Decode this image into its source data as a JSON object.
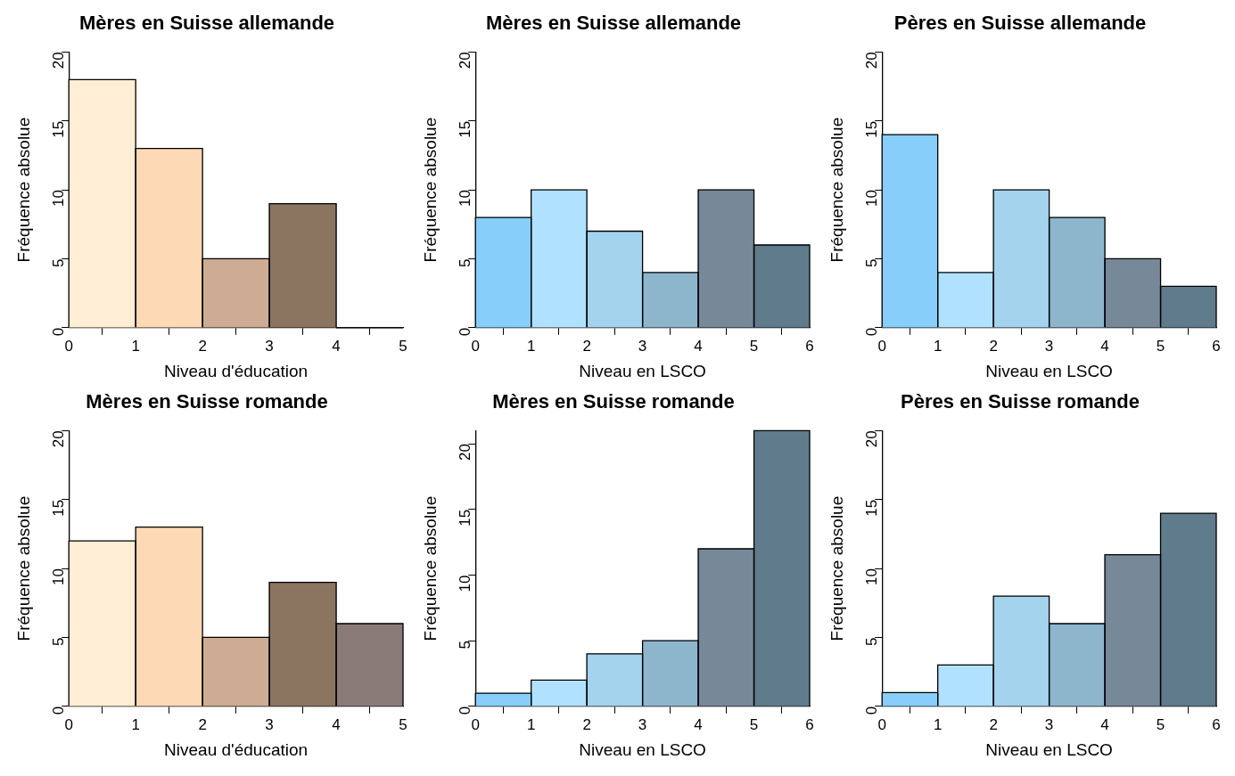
{
  "chart_data": [
    {
      "type": "histogram",
      "title": "Mères en Suisse allemande",
      "xlabel": "Niveau d'éducation",
      "ylabel": "Fréquence absolue",
      "bins": [
        0,
        1,
        2,
        3,
        4,
        5
      ],
      "values": [
        18,
        13,
        5,
        9,
        0
      ],
      "colors": [
        "#ffeed5",
        "#fdd9b5",
        "#cdac93",
        "#8b7560",
        "#8b7b78"
      ],
      "xlim": [
        0,
        5
      ],
      "xticks": [
        0,
        1,
        2,
        3,
        4,
        5
      ],
      "ylim": [
        0,
        20
      ],
      "yticks": [
        0,
        5,
        10,
        15,
        20
      ],
      "grid": false
    },
    {
      "type": "histogram",
      "title": "Mères en Suisse allemande",
      "xlabel": "Niveau en LSCO",
      "ylabel": "Fréquence absolue",
      "bins": [
        0,
        1,
        2,
        3,
        4,
        5,
        6
      ],
      "values": [
        8,
        10,
        7,
        4,
        10,
        6
      ],
      "colors": [
        "#87cefa",
        "#b0e2ff",
        "#a4d3ee",
        "#8db6cd",
        "#778899",
        "#607b8b"
      ],
      "xlim": [
        0,
        6
      ],
      "xticks": [
        0,
        1,
        2,
        3,
        4,
        5,
        6
      ],
      "ylim": [
        0,
        20
      ],
      "yticks": [
        0,
        5,
        10,
        15,
        20
      ],
      "grid": false
    },
    {
      "type": "histogram",
      "title": "Pères en Suisse allemande",
      "xlabel": "Niveau en LSCO",
      "ylabel": "Fréquence absolue",
      "bins": [
        0,
        1,
        2,
        3,
        4,
        5,
        6
      ],
      "values": [
        14,
        4,
        10,
        8,
        5,
        3
      ],
      "colors": [
        "#87cefa",
        "#b0e2ff",
        "#a4d3ee",
        "#8db6cd",
        "#778899",
        "#607b8b"
      ],
      "xlim": [
        0,
        6
      ],
      "xticks": [
        0,
        1,
        2,
        3,
        4,
        5,
        6
      ],
      "ylim": [
        0,
        20
      ],
      "yticks": [
        0,
        5,
        10,
        15,
        20
      ],
      "grid": false
    },
    {
      "type": "histogram",
      "title": "Mères en Suisse romande",
      "xlabel": "Niveau d'éducation",
      "ylabel": "Fréquence absolue",
      "bins": [
        0,
        1,
        2,
        3,
        4,
        5
      ],
      "values": [
        12,
        13,
        5,
        9,
        6
      ],
      "colors": [
        "#ffeed5",
        "#fdd9b5",
        "#cdac93",
        "#8b7560",
        "#8b7b78"
      ],
      "xlim": [
        0,
        5
      ],
      "xticks": [
        0,
        1,
        2,
        3,
        4,
        5
      ],
      "ylim": [
        0,
        20
      ],
      "yticks": [
        0,
        5,
        10,
        15,
        20
      ],
      "grid": false
    },
    {
      "type": "histogram",
      "title": "Mères en Suisse romande",
      "xlabel": "Niveau en LSCO",
      "ylabel": "Fréquence absolue",
      "bins": [
        0,
        1,
        2,
        3,
        4,
        5,
        6
      ],
      "values": [
        1,
        2,
        4,
        5,
        12,
        21
      ],
      "colors": [
        "#87cefa",
        "#b0e2ff",
        "#a4d3ee",
        "#8db6cd",
        "#778899",
        "#607b8b"
      ],
      "xlim": [
        0,
        6
      ],
      "xticks": [
        0,
        1,
        2,
        3,
        4,
        5,
        6
      ],
      "ylim": [
        0,
        21
      ],
      "yticks": [
        0,
        5,
        10,
        15,
        20
      ],
      "grid": false
    },
    {
      "type": "histogram",
      "title": "Pères en Suisse romande",
      "xlabel": "Niveau en LSCO",
      "ylabel": "Fréquence absolue",
      "bins": [
        0,
        1,
        2,
        3,
        4,
        5,
        6
      ],
      "values": [
        1,
        3,
        8,
        6,
        11,
        14
      ],
      "colors": [
        "#87cefa",
        "#b0e2ff",
        "#a4d3ee",
        "#8db6cd",
        "#778899",
        "#607b8b"
      ],
      "xlim": [
        0,
        6
      ],
      "xticks": [
        0,
        1,
        2,
        3,
        4,
        5,
        6
      ],
      "ylim": [
        0,
        20
      ],
      "yticks": [
        0,
        5,
        10,
        15,
        20
      ],
      "grid": false
    }
  ]
}
